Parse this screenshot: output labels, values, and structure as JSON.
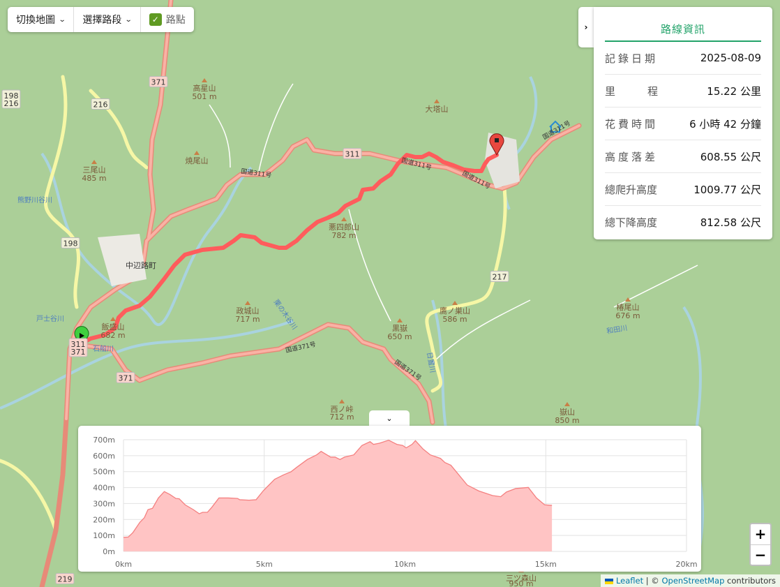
{
  "toolbar": {
    "switch_map": "切換地圖",
    "select_segment": "選擇路段",
    "waypoints": "路點",
    "waypoints_checked": true
  },
  "info": {
    "title": "路線資訊",
    "rows": [
      {
        "label": "記錄日期",
        "value": "2025-08-09"
      },
      {
        "label": "里程",
        "value": "15.22 公里"
      },
      {
        "label": "花費時間",
        "value": "6 小時 42 分鐘"
      },
      {
        "label": "高度落差",
        "value": "608.55 公尺"
      },
      {
        "label": "總爬升高度",
        "value": "1009.77 公尺"
      },
      {
        "label": "總下降高度",
        "value": "812.58 公尺"
      }
    ]
  },
  "map": {
    "route_color": "#ff5c5c",
    "peaks": [
      {
        "name": "高星山",
        "elev": "501 m"
      },
      {
        "name": "三尾山",
        "elev": "485 m"
      },
      {
        "name": "焼尾山",
        "elev": ""
      },
      {
        "name": "大塔山",
        "elev": ""
      },
      {
        "name": "悪四郎山",
        "elev": "782 m"
      },
      {
        "name": "政城山",
        "elev": "717 m"
      },
      {
        "name": "黒嶽",
        "elev": "650 m"
      },
      {
        "name": "鷹ノ巣山",
        "elev": "586 m"
      },
      {
        "name": "椿尾山",
        "elev": "676 m"
      },
      {
        "name": "嶽山",
        "elev": "850 m"
      },
      {
        "name": "西ノ峠",
        "elev": "712 m"
      },
      {
        "name": "三ツ森山",
        "elev": "950 m"
      },
      {
        "name": "飯盛山",
        "elev": "682 m"
      }
    ],
    "town": "中辺路町",
    "shields": [
      "371",
      "198\n216",
      "216",
      "311",
      "198",
      "217",
      "371",
      "311\n371",
      "219"
    ],
    "road_labels": [
      "国道311号",
      "国道311号",
      "国道311号",
      "国道311号",
      "国道371号",
      "国道371号"
    ],
    "rivers": [
      "熊野川谷川",
      "戸士谷川",
      "石船川",
      "日置川",
      "和田川",
      "栗の木谷川"
    ]
  },
  "chart_toggle": "⌄",
  "chart_data": {
    "type": "area",
    "xlabel": "",
    "ylabel": "",
    "x_ticks": [
      "0km",
      "5km",
      "10km",
      "15km",
      "20km"
    ],
    "y_ticks": [
      "0m",
      "100m",
      "200m",
      "300m",
      "400m",
      "500m",
      "600m",
      "700m"
    ],
    "xlim": [
      0,
      20
    ],
    "ylim": [
      0,
      700
    ],
    "grid": true,
    "fill_color": "#ffc4c4",
    "line_color": "#f48080",
    "points": [
      [
        0,
        88
      ],
      [
        0.17,
        90
      ],
      [
        0.33,
        117
      ],
      [
        0.58,
        182
      ],
      [
        0.74,
        211
      ],
      [
        0.87,
        262
      ],
      [
        1.03,
        270
      ],
      [
        1.24,
        335
      ],
      [
        1.45,
        375
      ],
      [
        1.65,
        357
      ],
      [
        1.86,
        332
      ],
      [
        1.98,
        330
      ],
      [
        2.19,
        292
      ],
      [
        2.48,
        262
      ],
      [
        2.69,
        236
      ],
      [
        2.81,
        245
      ],
      [
        2.98,
        245
      ],
      [
        3.14,
        277
      ],
      [
        3.39,
        335
      ],
      [
        3.72,
        335
      ],
      [
        4.05,
        332
      ],
      [
        4.13,
        324
      ],
      [
        4.46,
        321
      ],
      [
        4.71,
        324
      ],
      [
        4.96,
        379
      ],
      [
        5.37,
        452
      ],
      [
        5.7,
        481
      ],
      [
        5.95,
        499
      ],
      [
        6.16,
        528
      ],
      [
        6.53,
        576
      ],
      [
        6.86,
        605
      ],
      [
        7.02,
        627
      ],
      [
        7.36,
        591
      ],
      [
        7.52,
        591
      ],
      [
        7.69,
        576
      ],
      [
        7.85,
        591
      ],
      [
        8.18,
        605
      ],
      [
        8.47,
        664
      ],
      [
        8.76,
        688
      ],
      [
        8.88,
        671
      ],
      [
        9.09,
        678
      ],
      [
        9.42,
        697
      ],
      [
        9.71,
        671
      ],
      [
        9.92,
        664
      ],
      [
        10.04,
        649
      ],
      [
        10.25,
        671
      ],
      [
        10.37,
        694
      ],
      [
        10.64,
        642
      ],
      [
        10.9,
        605
      ],
      [
        11.26,
        583
      ],
      [
        11.42,
        557
      ],
      [
        11.63,
        540
      ],
      [
        12.21,
        416
      ],
      [
        12.62,
        379
      ],
      [
        13.11,
        350
      ],
      [
        13.4,
        343
      ],
      [
        13.6,
        372
      ],
      [
        13.93,
        394
      ],
      [
        14.38,
        401
      ],
      [
        14.67,
        335
      ],
      [
        14.96,
        292
      ],
      [
        15.17,
        289
      ],
      [
        15.22,
        289
      ]
    ]
  },
  "zoom": {
    "in": "+",
    "out": "−"
  },
  "attribution": {
    "leaflet": "Leaflet",
    "sep": " | © ",
    "osm": "OpenStreetMap",
    "suffix": " contributors"
  }
}
